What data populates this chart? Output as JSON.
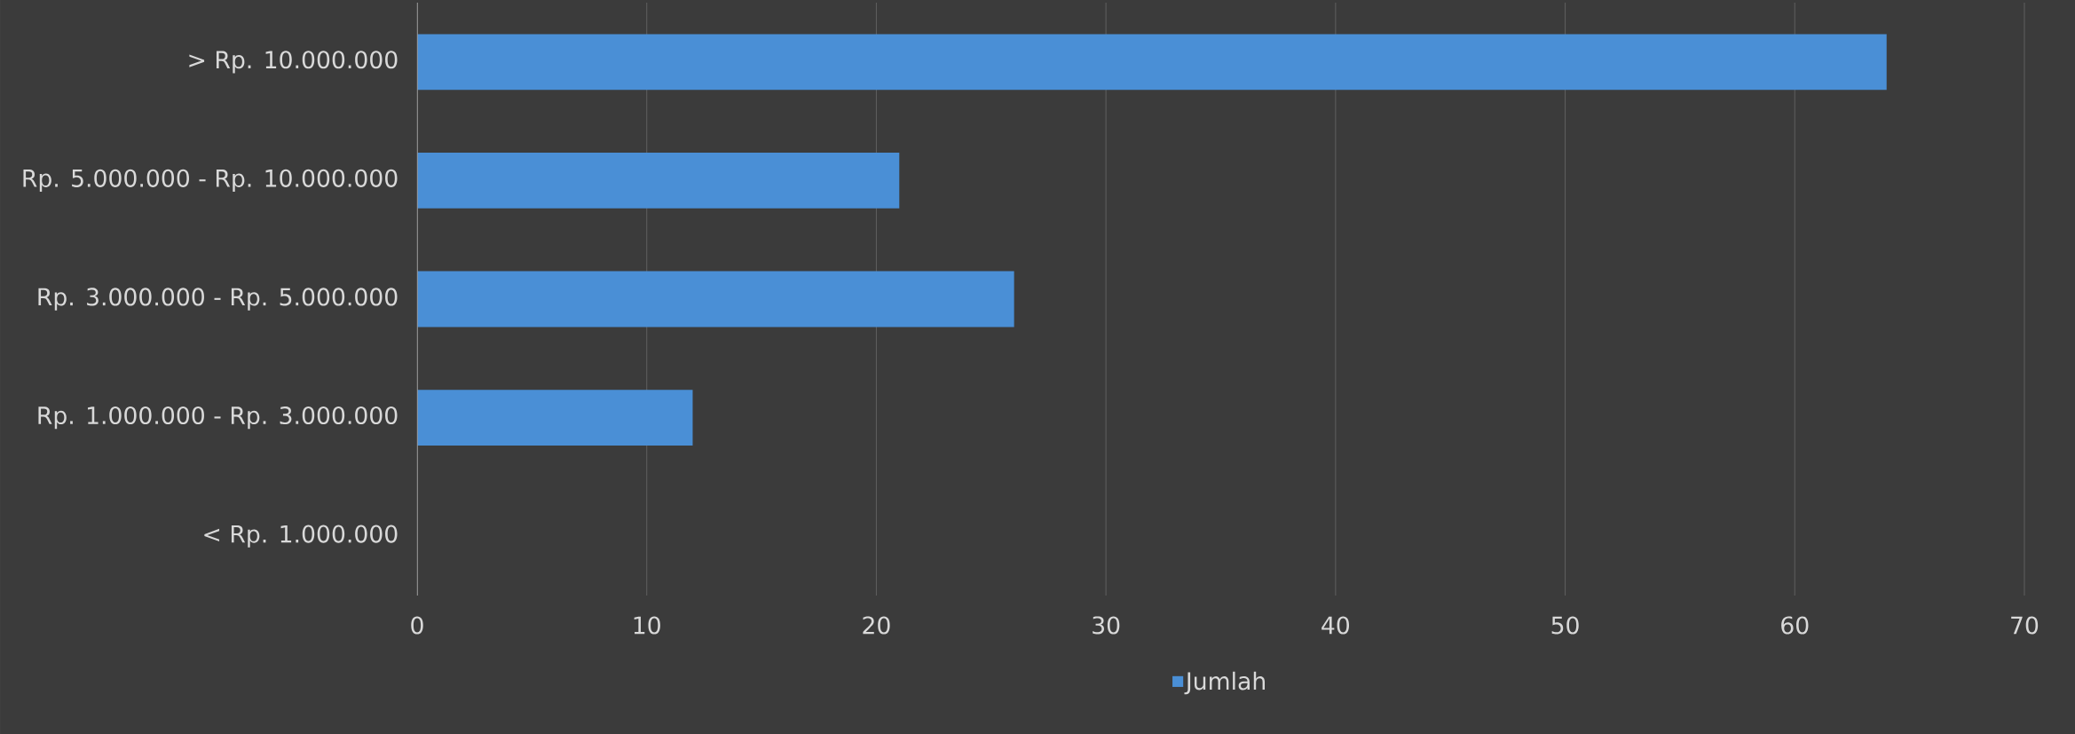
{
  "chart_data": {
    "type": "bar",
    "orientation": "horizontal",
    "categories": [
      "> Rp. 10.000.000",
      "Rp. 5.000.000 - Rp. 10.000.000",
      "Rp. 3.000.000 - Rp. 5.000.000",
      "Rp. 1.000.000 - Rp. 3.000.000",
      "< Rp. 1.000.000"
    ],
    "series": [
      {
        "name": "Jumlah",
        "color": "#4a8fd6",
        "values": [
          64,
          21,
          26,
          12,
          0
        ]
      }
    ],
    "xlim": [
      0,
      70
    ],
    "xticks": [
      0,
      10,
      20,
      30,
      40,
      50,
      60,
      70
    ],
    "grid": "x",
    "legend": "bottom"
  }
}
